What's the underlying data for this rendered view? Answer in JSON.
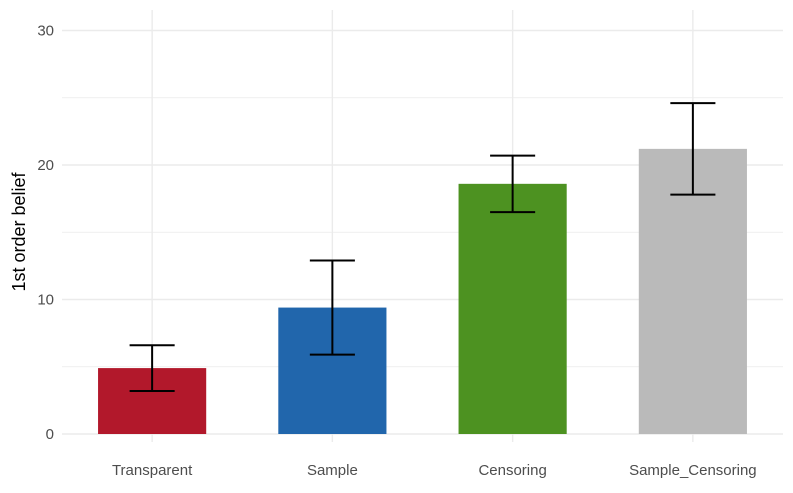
{
  "chart_data": {
    "type": "bar",
    "title": "",
    "xlabel": "",
    "ylabel": "1st order belief",
    "ylim": [
      0,
      31
    ],
    "y_ticks": [
      0,
      10,
      20,
      30
    ],
    "categories": [
      "Transparent",
      "Sample",
      "Censoring",
      "Sample_Censoring"
    ],
    "values": [
      4.9,
      9.4,
      18.6,
      21.2
    ],
    "error_low": [
      3.2,
      5.9,
      16.5,
      17.8
    ],
    "error_high": [
      6.6,
      12.9,
      20.7,
      24.6
    ],
    "colors": [
      "#b2182b",
      "#2166ac",
      "#4d9221",
      "#bababa"
    ],
    "grid": true,
    "legend": "none"
  }
}
